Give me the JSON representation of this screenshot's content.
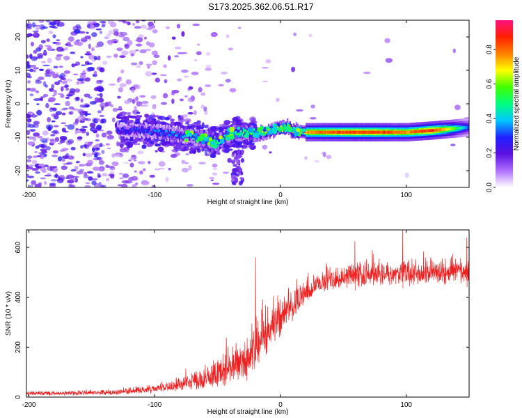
{
  "title": "S173.2025.362.06.51.R17",
  "chart_data": [
    {
      "type": "heatmap",
      "name": "spectrogram",
      "xlabel": "Height of straight line (km)",
      "ylabel": "Frequency (Hz)",
      "xlim": [
        -202,
        150
      ],
      "ylim": [
        -25,
        25
      ],
      "x_ticks": [
        -200,
        -100,
        0,
        100
      ],
      "x_tick_labels": [
        "-200",
        "-100",
        "0",
        "100"
      ],
      "y_ticks": [
        -20,
        -10,
        0,
        10,
        20
      ],
      "y_tick_labels": [
        "-20",
        "-10",
        "0",
        "10",
        "20"
      ],
      "colorbar": {
        "label": "Normalized spectral amplitude",
        "range": [
          0,
          0.97
        ],
        "ticks": [
          0.0,
          0.2,
          0.4,
          0.6,
          0.8
        ],
        "tick_labels": [
          "0.0",
          "0.2",
          "0.4",
          "0.6",
          "0.8"
        ],
        "colors": [
          "#ffffff",
          "#b070ff",
          "#5a10e0",
          "#2020ff",
          "#00c8ff",
          "#00ff80",
          "#40ff00",
          "#ffff00",
          "#ff8000",
          "#ff2000",
          "#ff1080"
        ]
      },
      "ridge": {
        "x": [
          -130,
          -110,
          -90,
          -75,
          -65,
          -55,
          -50,
          -45,
          -40,
          -30,
          -20,
          -10,
          0,
          5,
          10,
          20,
          40,
          60,
          80,
          100,
          120,
          135,
          150
        ],
        "frequency": [
          -8,
          -8,
          -9,
          -9.5,
          -10,
          -11,
          -11.5,
          -10,
          -9,
          -8.5,
          -9,
          -8,
          -7.5,
          -7,
          -8,
          -8.5,
          -8.5,
          -8.5,
          -8.5,
          -8.5,
          -8,
          -7.5,
          -7
        ],
        "amplitude": [
          0.25,
          0.3,
          0.33,
          0.36,
          0.42,
          0.5,
          0.52,
          0.48,
          0.5,
          0.52,
          0.55,
          0.6,
          0.62,
          0.66,
          0.7,
          0.78,
          0.85,
          0.88,
          0.86,
          0.8,
          0.9,
          0.65,
          0.3
        ]
      }
    },
    {
      "type": "line",
      "name": "snr",
      "xlabel": "Height of straight line (km)",
      "ylabel": "SNR (10 * v/v)",
      "xlim": [
        -202,
        150
      ],
      "ylim": [
        0,
        670
      ],
      "x_ticks": [
        -200,
        -100,
        0,
        100
      ],
      "x_tick_labels": [
        "-200",
        "-100",
        "0",
        "100"
      ],
      "y_ticks": [
        0,
        200,
        400,
        600
      ],
      "y_tick_labels": [
        "0",
        "200",
        "400",
        "600"
      ],
      "color": "#ee2020",
      "series": [
        {
          "name": "SNR trend",
          "x": [
            -202,
            -180,
            -160,
            -140,
            -120,
            -110,
            -100,
            -90,
            -80,
            -70,
            -60,
            -50,
            -40,
            -30,
            -22,
            -18,
            -10,
            -5,
            0,
            5,
            10,
            15,
            20,
            30,
            40,
            50,
            60,
            80,
            100,
            120,
            140,
            150
          ],
          "baseline": [
            12,
            13,
            14,
            16,
            20,
            24,
            30,
            36,
            44,
            54,
            66,
            82,
            100,
            120,
            150,
            200,
            240,
            270,
            300,
            330,
            360,
            380,
            410,
            440,
            460,
            470,
            475,
            480,
            485,
            485,
            490,
            490
          ],
          "spread": [
            18,
            18,
            20,
            22,
            26,
            30,
            36,
            44,
            56,
            70,
            90,
            120,
            150,
            170,
            240,
            200,
            180,
            180,
            170,
            150,
            130,
            110,
            100,
            95,
            95,
            95,
            95,
            100,
            100,
            100,
            100,
            100
          ]
        }
      ],
      "peaks": [
        {
          "x": -20,
          "y": 560
        },
        {
          "x": 97,
          "y": 670
        },
        {
          "x": 148,
          "y": 640
        },
        {
          "x": 59,
          "y": 625
        }
      ]
    }
  ]
}
